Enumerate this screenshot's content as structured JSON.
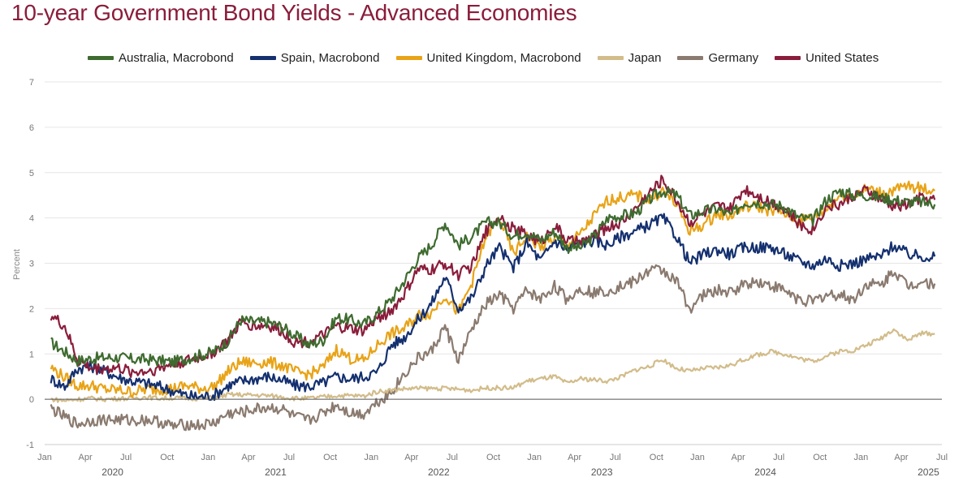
{
  "title": "10-year Government Bond Yields - Advanced Economies",
  "chart_data": {
    "type": "line",
    "title": "10-year Government Bond Yields - Advanced Economies",
    "xlabel": "",
    "ylabel": "Percent",
    "ylim": [
      -1,
      7
    ],
    "yticks": [
      -1,
      0,
      1,
      2,
      3,
      4,
      5,
      6,
      7
    ],
    "xlim": [
      "2020-01-01",
      "2025-07-01"
    ],
    "x_tick_labels": [
      "Jan",
      "Apr",
      "Jul",
      "Oct",
      "Jan",
      "Apr",
      "Jul",
      "Oct",
      "Jan",
      "Apr",
      "Jul",
      "Oct",
      "Jan",
      "Apr",
      "Jul",
      "Oct",
      "Jan",
      "Apr",
      "Jul",
      "Oct",
      "Jan",
      "Apr",
      "Jul",
      "Oct",
      "Jan",
      "Apr",
      "Jul"
    ],
    "year_labels": [
      "2020",
      "2021",
      "2022",
      "2023",
      "2024",
      "2025"
    ],
    "grid": true,
    "legend_position": "top",
    "x": [
      "2020-01",
      "2020-02",
      "2020-03",
      "2020-04",
      "2020-05",
      "2020-06",
      "2020-07",
      "2020-08",
      "2020-09",
      "2020-10",
      "2020-11",
      "2020-12",
      "2021-01",
      "2021-02",
      "2021-03",
      "2021-04",
      "2021-05",
      "2021-06",
      "2021-07",
      "2021-08",
      "2021-09",
      "2021-10",
      "2021-11",
      "2021-12",
      "2022-01",
      "2022-02",
      "2022-03",
      "2022-04",
      "2022-05",
      "2022-06",
      "2022-07",
      "2022-08",
      "2022-09",
      "2022-10",
      "2022-11",
      "2022-12",
      "2023-01",
      "2023-02",
      "2023-03",
      "2023-04",
      "2023-05",
      "2023-06",
      "2023-07",
      "2023-08",
      "2023-09",
      "2023-10",
      "2023-11",
      "2023-12",
      "2024-01",
      "2024-02",
      "2024-03",
      "2024-04",
      "2024-05",
      "2024-06",
      "2024-07",
      "2024-08",
      "2024-09",
      "2024-10",
      "2024-11",
      "2024-12",
      "2025-01",
      "2025-02",
      "2025-03",
      "2025-04",
      "2025-05",
      "2025-06"
    ],
    "series": [
      {
        "name": "Australia, Macrobond",
        "color": "#3e6b2f",
        "values": [
          1.25,
          1.05,
          0.85,
          0.9,
          0.92,
          0.92,
          0.88,
          0.88,
          0.85,
          0.82,
          0.9,
          0.98,
          1.05,
          1.3,
          1.75,
          1.7,
          1.7,
          1.6,
          1.4,
          1.2,
          1.3,
          1.8,
          1.75,
          1.65,
          1.9,
          2.2,
          2.6,
          3.1,
          3.4,
          3.9,
          3.4,
          3.6,
          3.9,
          3.9,
          3.6,
          3.7,
          3.5,
          3.7,
          3.35,
          3.35,
          3.6,
          4.0,
          4.05,
          4.1,
          4.4,
          4.6,
          4.5,
          4.05,
          4.15,
          4.2,
          4.05,
          4.35,
          4.35,
          4.3,
          4.25,
          4.0,
          3.95,
          4.4,
          4.6,
          4.5,
          4.5,
          4.45,
          4.4,
          4.35,
          4.35,
          4.3
        ]
      },
      {
        "name": "Spain, Macrobond",
        "color": "#14306f",
        "values": [
          0.45,
          0.28,
          0.68,
          0.72,
          0.62,
          0.48,
          0.4,
          0.35,
          0.28,
          0.18,
          0.08,
          0.05,
          0.1,
          0.3,
          0.4,
          0.45,
          0.5,
          0.42,
          0.3,
          0.28,
          0.36,
          0.5,
          0.45,
          0.5,
          0.6,
          1.2,
          1.35,
          1.75,
          2.1,
          2.7,
          2.0,
          2.25,
          2.95,
          3.35,
          2.9,
          3.45,
          3.05,
          3.5,
          3.3,
          3.45,
          3.5,
          3.4,
          3.6,
          3.7,
          3.85,
          4.0,
          3.6,
          3.0,
          3.2,
          3.3,
          3.2,
          3.35,
          3.35,
          3.35,
          3.2,
          3.05,
          2.95,
          3.1,
          2.95,
          3.0,
          3.1,
          3.15,
          3.4,
          3.2,
          3.15,
          3.15
        ]
      },
      {
        "name": "United Kingdom, Macrobond",
        "color": "#e8a317",
        "values": [
          0.7,
          0.48,
          0.3,
          0.3,
          0.22,
          0.2,
          0.16,
          0.22,
          0.22,
          0.24,
          0.3,
          0.24,
          0.28,
          0.62,
          0.82,
          0.8,
          0.82,
          0.75,
          0.6,
          0.55,
          0.7,
          1.1,
          0.9,
          0.85,
          1.2,
          1.45,
          1.55,
          1.85,
          1.9,
          2.3,
          1.9,
          2.6,
          3.6,
          4.0,
          3.2,
          3.6,
          3.35,
          3.55,
          3.4,
          3.65,
          4.05,
          4.4,
          4.45,
          4.5,
          4.4,
          4.6,
          4.3,
          3.7,
          3.85,
          4.1,
          4.05,
          4.25,
          4.25,
          4.15,
          4.1,
          3.95,
          4.0,
          4.2,
          4.5,
          4.5,
          4.65,
          4.55,
          4.6,
          4.7,
          4.65,
          4.6
        ]
      },
      {
        "name": "Japan",
        "color": "#d2bc8a",
        "values": [
          0.0,
          -0.03,
          0.0,
          0.02,
          0.0,
          0.02,
          0.02,
          0.05,
          0.02,
          0.03,
          0.02,
          0.02,
          0.04,
          0.1,
          0.1,
          0.09,
          0.08,
          0.05,
          0.02,
          0.02,
          0.05,
          0.08,
          0.08,
          0.07,
          0.17,
          0.2,
          0.23,
          0.24,
          0.24,
          0.24,
          0.22,
          0.2,
          0.25,
          0.25,
          0.25,
          0.4,
          0.45,
          0.5,
          0.35,
          0.45,
          0.43,
          0.4,
          0.5,
          0.65,
          0.72,
          0.88,
          0.68,
          0.62,
          0.68,
          0.7,
          0.75,
          0.88,
          0.98,
          1.05,
          1.0,
          0.9,
          0.84,
          0.95,
          1.06,
          1.08,
          1.2,
          1.35,
          1.55,
          1.3,
          1.45,
          1.45
        ]
      },
      {
        "name": "Germany",
        "color": "#8a7a6f",
        "values": [
          -0.2,
          -0.4,
          -0.55,
          -0.47,
          -0.45,
          -0.45,
          -0.47,
          -0.45,
          -0.5,
          -0.6,
          -0.55,
          -0.58,
          -0.52,
          -0.32,
          -0.3,
          -0.22,
          -0.18,
          -0.22,
          -0.4,
          -0.47,
          -0.3,
          -0.12,
          -0.3,
          -0.32,
          -0.05,
          0.15,
          0.55,
          0.9,
          1.05,
          1.6,
          0.85,
          1.55,
          2.1,
          2.3,
          2.0,
          2.4,
          2.2,
          2.5,
          2.2,
          2.45,
          2.35,
          2.4,
          2.5,
          2.6,
          2.85,
          2.85,
          2.6,
          2.0,
          2.3,
          2.4,
          2.35,
          2.55,
          2.6,
          2.5,
          2.4,
          2.2,
          2.15,
          2.3,
          2.3,
          2.2,
          2.55,
          2.5,
          2.85,
          2.5,
          2.6,
          2.55
        ]
      },
      {
        "name": "United States",
        "color": "#8a1d3b",
        "values": [
          1.85,
          1.6,
          0.85,
          0.68,
          0.68,
          0.68,
          0.6,
          0.62,
          0.68,
          0.78,
          0.85,
          0.92,
          1.05,
          1.3,
          1.7,
          1.62,
          1.62,
          1.5,
          1.25,
          1.28,
          1.4,
          1.6,
          1.55,
          1.5,
          1.8,
          1.95,
          2.3,
          2.85,
          2.85,
          3.0,
          2.75,
          2.95,
          3.7,
          4.05,
          3.75,
          3.65,
          3.45,
          3.85,
          3.5,
          3.45,
          3.6,
          3.8,
          3.9,
          4.2,
          4.55,
          4.85,
          4.4,
          3.9,
          4.1,
          4.25,
          4.2,
          4.65,
          4.5,
          4.35,
          4.2,
          3.85,
          3.75,
          4.25,
          4.3,
          4.5,
          4.6,
          4.4,
          4.25,
          4.3,
          4.45,
          4.4
        ]
      }
    ]
  }
}
